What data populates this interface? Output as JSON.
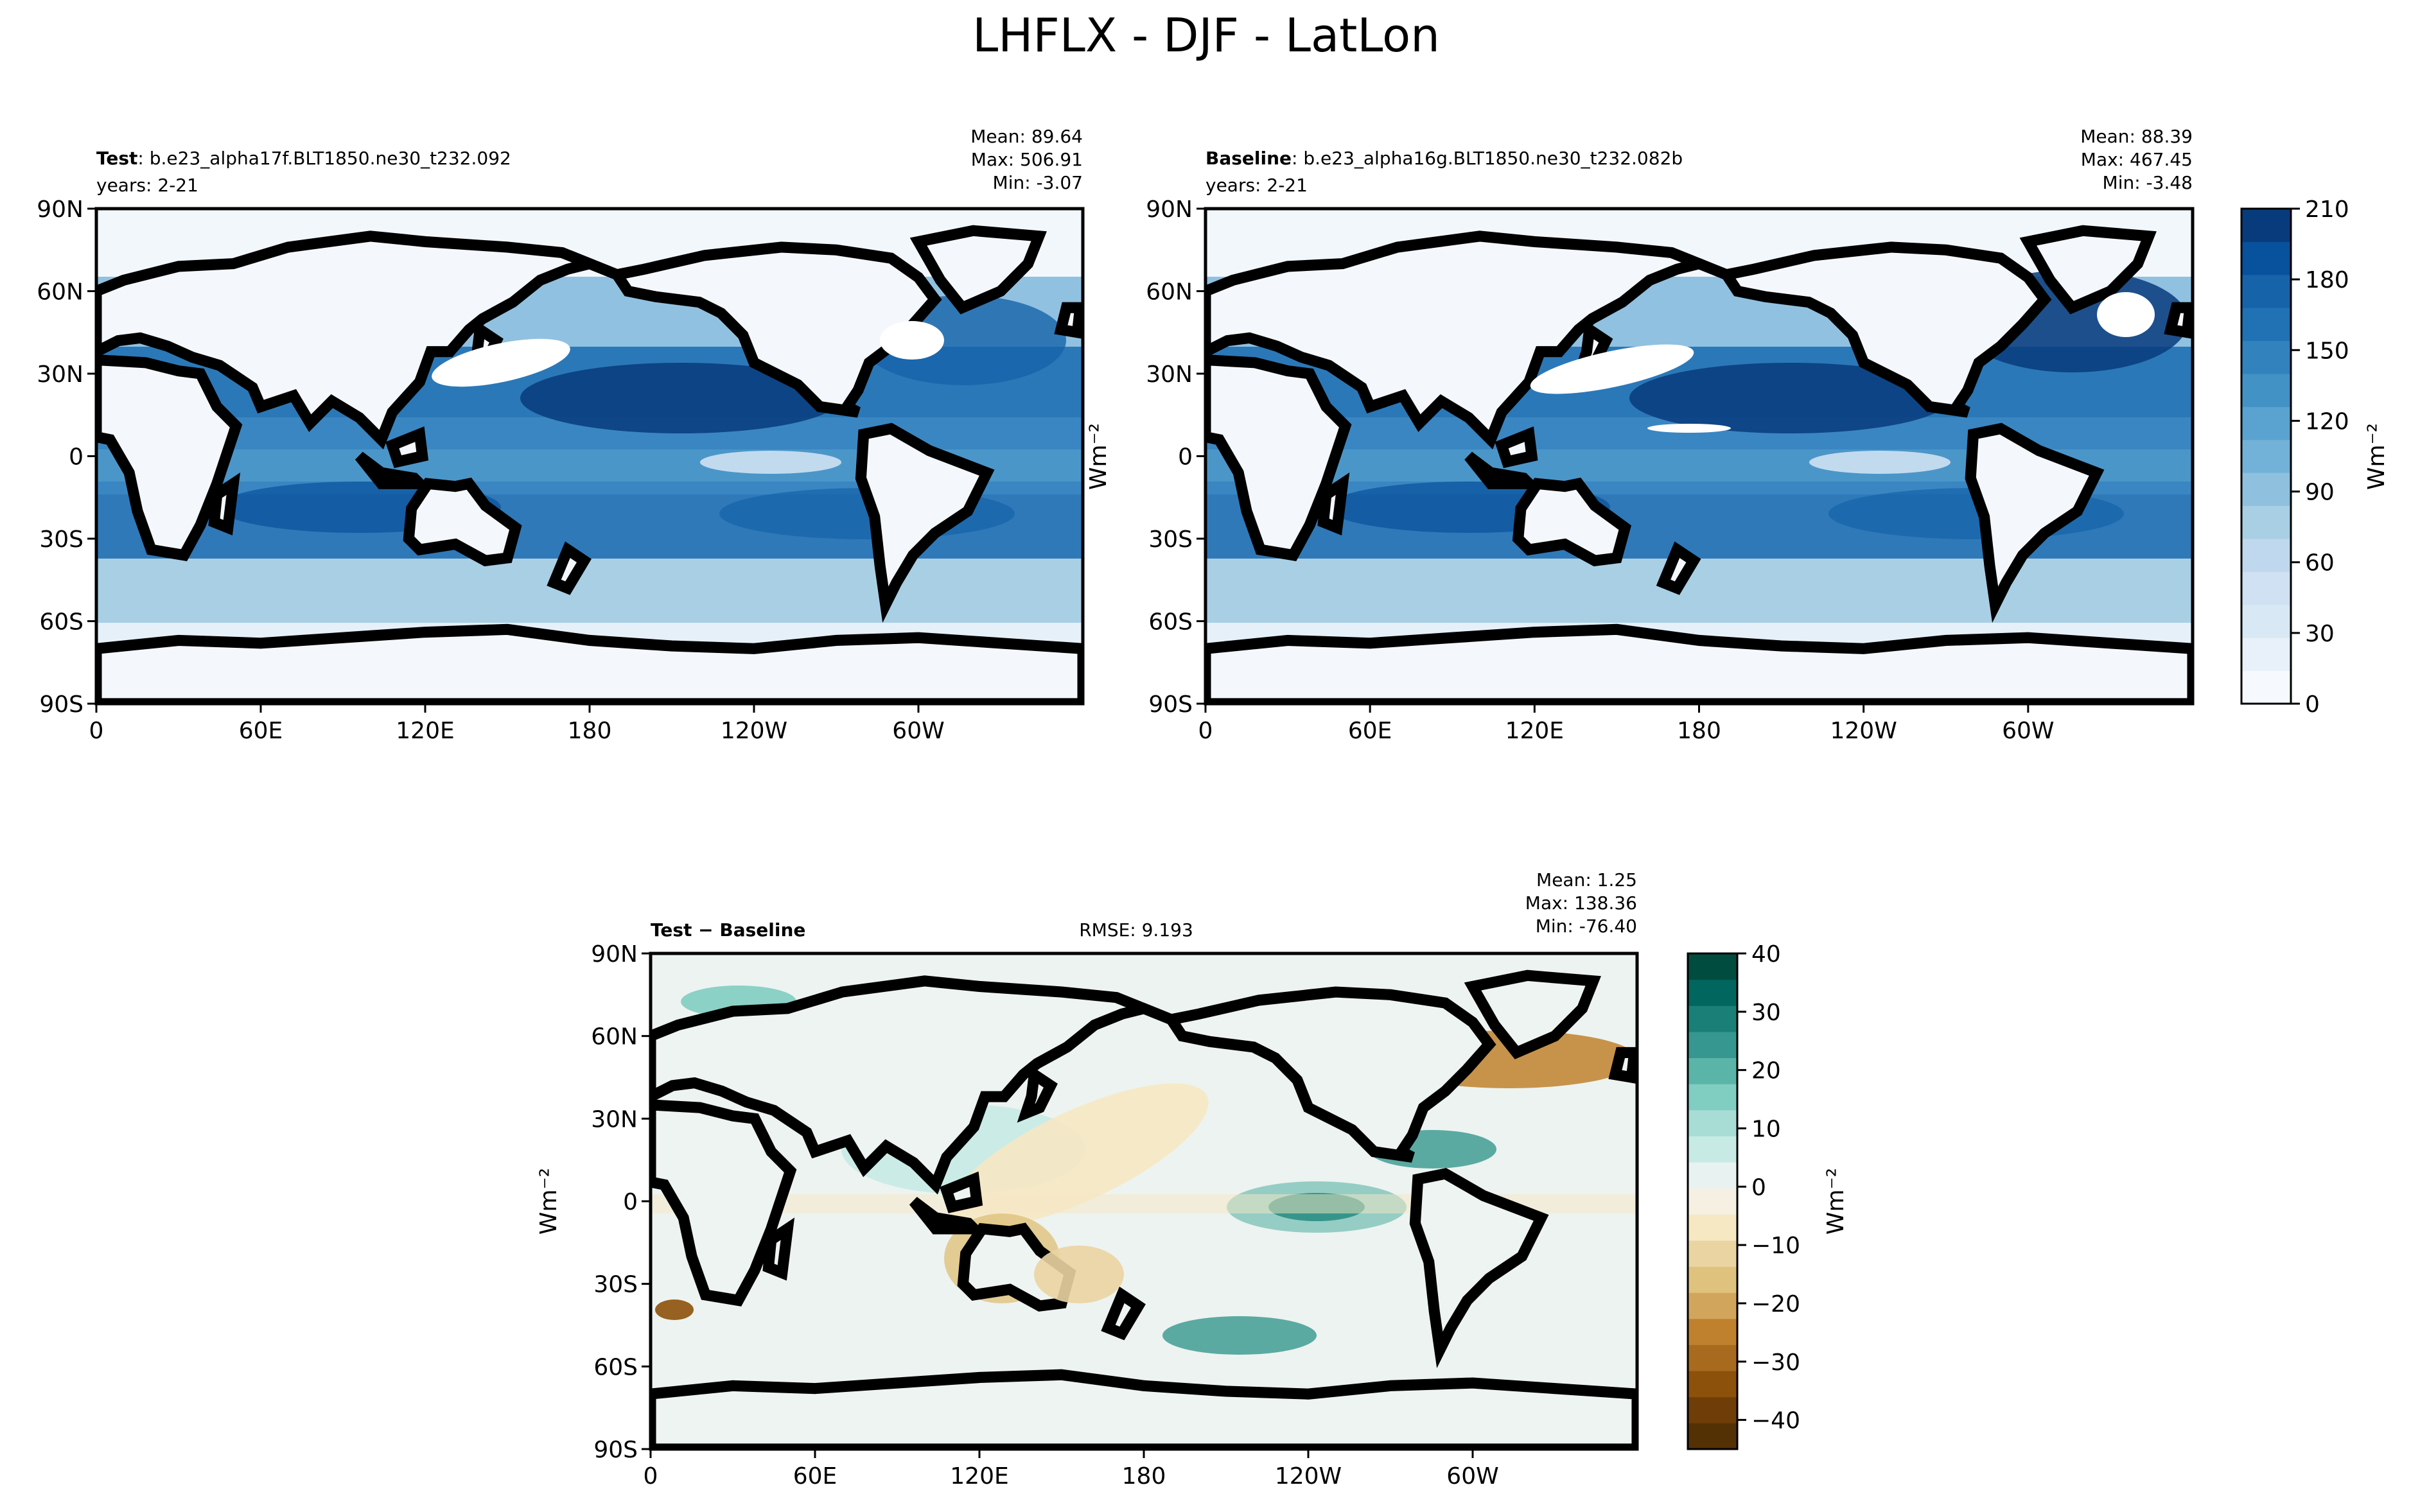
{
  "figure": {
    "title": "LHFLX - DJF - LatLon"
  },
  "panels": [
    {
      "id": "test",
      "label_bold": "Test",
      "label_rest": ": b.e23_alpha17f.BLT1850.ne30_t232.092",
      "years": "years: 2-21",
      "stats": [
        "Mean: 89.64",
        "Max: 506.91",
        "Min: -3.07"
      ],
      "rmse": ""
    },
    {
      "id": "baseline",
      "label_bold": "Baseline",
      "label_rest": ": b.e23_alpha16g.BLT1850.ne30_t232.082b",
      "years": "years: 2-21",
      "stats": [
        "Mean: 88.39",
        "Max: 467.45",
        "Min: -3.48"
      ],
      "rmse": ""
    },
    {
      "id": "diff",
      "label_bold": "Test − Baseline",
      "label_rest": "",
      "years": "",
      "stats": [
        "Mean:  1.25",
        "Max: 138.36",
        "Min: -76.40"
      ],
      "rmse": "RMSE: 9.193"
    }
  ],
  "colorbars": {
    "top": {
      "label": "Wm⁻²",
      "vmin": 0,
      "vmax": 210,
      "ticks": [
        "0",
        "30",
        "60",
        "90",
        "120",
        "150",
        "180",
        "210"
      ],
      "levels": 21,
      "colors": [
        "#f6fafe",
        "#e8f1fa",
        "#d9e8f5",
        "#cfe1f2",
        "#bfd8ed",
        "#a9cfe5",
        "#8fc1de",
        "#73b2d8",
        "#5aa2cf",
        "#4292c6",
        "#3282be",
        "#2171b5",
        "#1663aa",
        "#08519c",
        "#083b7c"
      ]
    },
    "bottom": {
      "label": "Wm⁻²",
      "vmin": -45,
      "vmax": 40,
      "ticks": [
        "−40",
        "−30",
        "−20",
        "−10",
        "0",
        "10",
        "20",
        "30",
        "40"
      ],
      "colors": [
        "#543005",
        "#6f3d08",
        "#8c510a",
        "#a86a1f",
        "#bf812d",
        "#d2a55c",
        "#dfc27d",
        "#ead4a2",
        "#f6e8c3",
        "#f5f0e2",
        "#e8f3f1",
        "#c7eae5",
        "#a8ddd5",
        "#80cdc1",
        "#5ab4a8",
        "#35978f",
        "#1a7f76",
        "#01665e",
        "#004d3f"
      ]
    }
  },
  "axes": {
    "lon_ticks": [
      "0",
      "60E",
      "120E",
      "180",
      "120W",
      "60W"
    ],
    "lat_ticks": [
      "90N",
      "60N",
      "30N",
      "0",
      "30S",
      "60S",
      "90S"
    ],
    "ylabel_side": "Wm⁻²"
  },
  "chart_data": [
    {
      "type": "heatmap",
      "title": "Test",
      "variable": "LHFLX",
      "season": "DJF",
      "mean": 89.64,
      "max": 506.91,
      "min": -3.07,
      "xlim": [
        0,
        360
      ],
      "ylim": [
        -90,
        90
      ],
      "clim": [
        0,
        210
      ]
    },
    {
      "type": "heatmap",
      "title": "Baseline",
      "variable": "LHFLX",
      "season": "DJF",
      "mean": 88.39,
      "max": 467.45,
      "min": -3.48,
      "xlim": [
        0,
        360
      ],
      "ylim": [
        -90,
        90
      ],
      "clim": [
        0,
        210
      ]
    },
    {
      "type": "heatmap",
      "title": "Test − Baseline",
      "variable": "LHFLX",
      "season": "DJF",
      "mean": 1.25,
      "max": 138.36,
      "min": -76.4,
      "rmse": 9.193,
      "xlim": [
        0,
        360
      ],
      "ylim": [
        -90,
        90
      ],
      "clim": [
        -45,
        40
      ]
    }
  ]
}
